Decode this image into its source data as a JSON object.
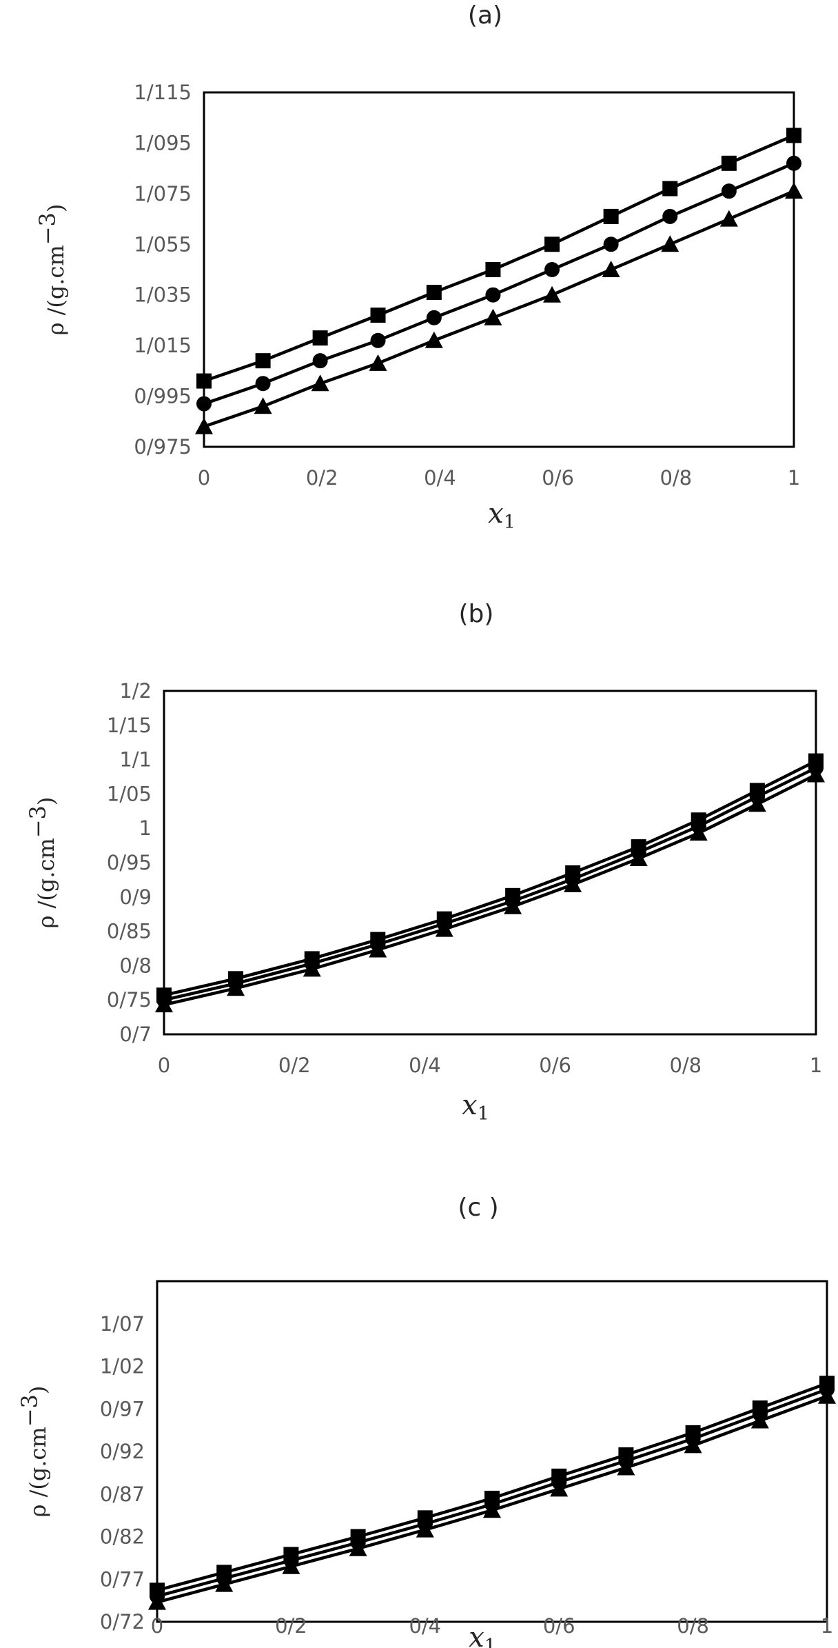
{
  "chart_data": [
    {
      "type": "line",
      "panel_label": "(a)",
      "xlabel": "x",
      "xlabel_sub": "1",
      "ylabel": "ρ /(g.cm",
      "ylabel_sup": "−3",
      "ylabel_close": ")",
      "xlim": [
        0,
        1
      ],
      "ylim": [
        0.975,
        1.115
      ],
      "x_ticks": [
        0,
        0.2,
        0.4,
        0.6,
        0.8,
        1
      ],
      "x_tick_labels": [
        "0",
        "0/2",
        "0/4",
        "0/6",
        "0/8",
        "1"
      ],
      "y_ticks": [
        0.975,
        0.995,
        1.015,
        1.035,
        1.055,
        1.075,
        1.095,
        1.115
      ],
      "y_tick_labels": [
        "0/975",
        "0/995",
        "1/015",
        "1/035",
        "1/055",
        "1/075",
        "1/095",
        "1/115"
      ],
      "grid": false,
      "series": [
        {
          "marker": "square",
          "x": [
            0,
            0.1,
            0.197,
            0.295,
            0.39,
            0.49,
            0.59,
            0.69,
            0.79,
            0.89,
            1.0
          ],
          "y": [
            1.001,
            1.009,
            1.018,
            1.027,
            1.036,
            1.045,
            1.055,
            1.066,
            1.077,
            1.087,
            1.098
          ]
        },
        {
          "marker": "circle",
          "x": [
            0,
            0.1,
            0.197,
            0.295,
            0.39,
            0.49,
            0.59,
            0.69,
            0.79,
            0.89,
            1.0
          ],
          "y": [
            0.992,
            1.0,
            1.009,
            1.017,
            1.026,
            1.035,
            1.045,
            1.055,
            1.066,
            1.076,
            1.087
          ]
        },
        {
          "marker": "triangle",
          "x": [
            0,
            0.1,
            0.197,
            0.295,
            0.39,
            0.49,
            0.59,
            0.69,
            0.79,
            0.89,
            1.0
          ],
          "y": [
            0.983,
            0.991,
            1.0,
            1.008,
            1.017,
            1.026,
            1.035,
            1.045,
            1.055,
            1.065,
            1.076
          ]
        }
      ]
    },
    {
      "type": "line",
      "panel_label": "(b)",
      "xlabel": "x",
      "xlabel_sub": "1",
      "ylabel": "ρ /(g.cm",
      "ylabel_sup": "−3",
      "ylabel_close": ")",
      "xlim": [
        0,
        1
      ],
      "ylim": [
        0.7,
        1.2
      ],
      "x_ticks": [
        0,
        0.2,
        0.4,
        0.6,
        0.8,
        1
      ],
      "x_tick_labels": [
        "0",
        "0/2",
        "0/4",
        "0/6",
        "0/8",
        "1"
      ],
      "y_ticks": [
        0.7,
        0.75,
        0.8,
        0.85,
        0.9,
        0.95,
        1.0,
        1.05,
        1.1,
        1.15,
        1.2
      ],
      "y_tick_labels": [
        "0/7",
        "0/75",
        "0/8",
        "0/85",
        "0/9",
        "0/95",
        "1",
        "1/05",
        "1/1",
        "1/15",
        "1/2"
      ],
      "grid": false,
      "series": [
        {
          "marker": "square",
          "x": [
            0,
            0.11,
            0.227,
            0.328,
            0.43,
            0.535,
            0.627,
            0.728,
            0.82,
            0.91,
            1.0
          ],
          "y": [
            0.757,
            0.781,
            0.81,
            0.838,
            0.868,
            0.902,
            0.935,
            0.973,
            1.012,
            1.055,
            1.098
          ]
        },
        {
          "marker": "circle",
          "x": [
            0,
            0.11,
            0.227,
            0.328,
            0.43,
            0.535,
            0.627,
            0.728,
            0.82,
            0.91,
            1.0
          ],
          "y": [
            0.75,
            0.774,
            0.803,
            0.831,
            0.861,
            0.894,
            0.926,
            0.965,
            1.003,
            1.046,
            1.088
          ]
        },
        {
          "marker": "triangle",
          "x": [
            0,
            0.11,
            0.227,
            0.328,
            0.43,
            0.535,
            0.627,
            0.728,
            0.82,
            0.91,
            1.0
          ],
          "y": [
            0.743,
            0.767,
            0.795,
            0.823,
            0.853,
            0.886,
            0.918,
            0.956,
            0.993,
            1.035,
            1.078
          ]
        }
      ]
    },
    {
      "type": "line",
      "panel_label": "(c )",
      "xlabel": "x",
      "xlabel_sub": "1",
      "ylabel": "ρ /(g.cm",
      "ylabel_sup": "−3",
      "ylabel_close": ")",
      "xlim": [
        0,
        1
      ],
      "ylim": [
        0.72,
        1.12
      ],
      "x_ticks": [
        0,
        0.2,
        0.4,
        0.6,
        0.8,
        1
      ],
      "x_tick_labels": [
        "0",
        "0/2",
        "0/4",
        "0/6",
        "0/8",
        "1"
      ],
      "y_ticks": [
        0.72,
        0.77,
        0.82,
        0.87,
        0.92,
        0.97,
        1.02,
        1.07
      ],
      "y_tick_labels": [
        "0/72",
        "0/77",
        "0/82",
        "0/87",
        "0/92",
        "0/97",
        "1/02",
        "1/07"
      ],
      "grid": false,
      "series": [
        {
          "marker": "square",
          "x": [
            0,
            0.1,
            0.2,
            0.3,
            0.4,
            0.5,
            0.6,
            0.7,
            0.8,
            0.9,
            1.0
          ],
          "y": [
            0.757,
            0.778,
            0.799,
            0.82,
            0.842,
            0.865,
            0.891,
            0.916,
            0.942,
            0.971,
            1.0
          ]
        },
        {
          "marker": "circle",
          "x": [
            0,
            0.1,
            0.2,
            0.3,
            0.4,
            0.5,
            0.6,
            0.7,
            0.8,
            0.9,
            1.0
          ],
          "y": [
            0.75,
            0.771,
            0.792,
            0.813,
            0.835,
            0.858,
            0.884,
            0.909,
            0.935,
            0.964,
            0.993
          ]
        },
        {
          "marker": "triangle",
          "x": [
            0,
            0.1,
            0.2,
            0.3,
            0.4,
            0.5,
            0.6,
            0.7,
            0.8,
            0.9,
            1.0
          ],
          "y": [
            0.743,
            0.764,
            0.785,
            0.806,
            0.828,
            0.851,
            0.876,
            0.901,
            0.927,
            0.956,
            0.985
          ]
        }
      ]
    }
  ]
}
